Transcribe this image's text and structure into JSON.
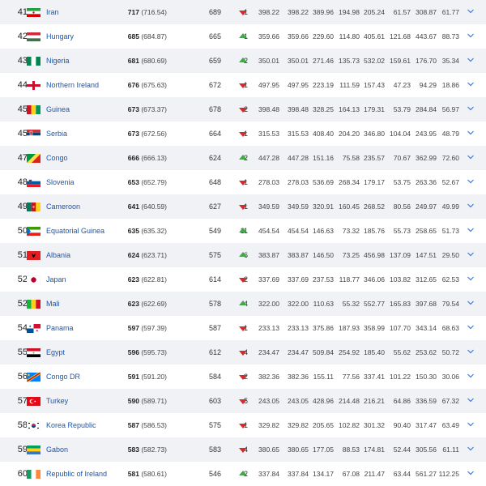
{
  "rows": [
    {
      "rank": "41",
      "team": "Iran",
      "flag": "iran",
      "pts": "717",
      "pts_prec": "(716.54)",
      "prev": "689",
      "move": "-1",
      "dir": "down",
      "cols": [
        "398.22",
        "398.22",
        "389.96",
        "194.98",
        "205.24",
        "61.57",
        "308.87",
        "61.77"
      ]
    },
    {
      "rank": "42",
      "team": "Hungary",
      "flag": "hungary",
      "pts": "685",
      "pts_prec": "(684.87)",
      "prev": "665",
      "move": "1",
      "dir": "up",
      "cols": [
        "359.66",
        "359.66",
        "229.60",
        "114.80",
        "405.61",
        "121.68",
        "443.67",
        "88.73"
      ]
    },
    {
      "rank": "43",
      "team": "Nigeria",
      "flag": "nigeria",
      "pts": "681",
      "pts_prec": "(680.69)",
      "prev": "659",
      "move": "2",
      "dir": "up",
      "cols": [
        "350.01",
        "350.01",
        "271.46",
        "135.73",
        "532.02",
        "159.61",
        "176.70",
        "35.34"
      ]
    },
    {
      "rank": "44",
      "team": "Northern Ireland",
      "flag": "nireland",
      "pts": "676",
      "pts_prec": "(675.63)",
      "prev": "672",
      "move": "-1",
      "dir": "down",
      "cols": [
        "497.95",
        "497.95",
        "223.19",
        "111.59",
        "157.43",
        "47.23",
        "94.29",
        "18.86"
      ]
    },
    {
      "rank": "45",
      "team": "Guinea",
      "flag": "guinea",
      "pts": "673",
      "pts_prec": "(673.37)",
      "prev": "678",
      "move": "-2",
      "dir": "down",
      "cols": [
        "398.48",
        "398.48",
        "328.25",
        "164.13",
        "179.31",
        "53.79",
        "284.84",
        "56.97"
      ]
    },
    {
      "rank": "45",
      "team": "Serbia",
      "flag": "serbia",
      "pts": "673",
      "pts_prec": "(672.56)",
      "prev": "664",
      "move": "-1",
      "dir": "down",
      "cols": [
        "315.53",
        "315.53",
        "408.40",
        "204.20",
        "346.80",
        "104.04",
        "243.95",
        "48.79"
      ]
    },
    {
      "rank": "47",
      "team": "Congo",
      "flag": "congo",
      "pts": "666",
      "pts_prec": "(666.13)",
      "prev": "624",
      "move": "2",
      "dir": "up",
      "cols": [
        "447.28",
        "447.28",
        "151.16",
        "75.58",
        "235.57",
        "70.67",
        "362.99",
        "72.60"
      ]
    },
    {
      "rank": "48",
      "team": "Slovenia",
      "flag": "slovenia",
      "pts": "653",
      "pts_prec": "(652.79)",
      "prev": "648",
      "move": "-1",
      "dir": "down",
      "cols": [
        "278.03",
        "278.03",
        "536.69",
        "268.34",
        "179.17",
        "53.75",
        "263.36",
        "52.67"
      ]
    },
    {
      "rank": "49",
      "team": "Cameroon",
      "flag": "cameroon",
      "pts": "641",
      "pts_prec": "(640.59)",
      "prev": "627",
      "move": "-1",
      "dir": "down",
      "cols": [
        "349.59",
        "349.59",
        "320.91",
        "160.45",
        "268.52",
        "80.56",
        "249.97",
        "49.99"
      ]
    },
    {
      "rank": "50",
      "team": "Equatorial Guinea",
      "flag": "eqguinea",
      "pts": "635",
      "pts_prec": "(635.32)",
      "prev": "549",
      "move": "11",
      "dir": "up",
      "cols": [
        "454.54",
        "454.54",
        "146.63",
        "73.32",
        "185.76",
        "55.73",
        "258.65",
        "51.73"
      ]
    },
    {
      "rank": "51",
      "team": "Albania",
      "flag": "albania",
      "pts": "624",
      "pts_prec": "(623.71)",
      "prev": "575",
      "move": "6",
      "dir": "up",
      "cols": [
        "383.87",
        "383.87",
        "146.50",
        "73.25",
        "456.98",
        "137.09",
        "147.51",
        "29.50"
      ]
    },
    {
      "rank": "52",
      "team": "Japan",
      "flag": "japan",
      "pts": "623",
      "pts_prec": "(622.81)",
      "prev": "614",
      "move": "-2",
      "dir": "down",
      "cols": [
        "337.69",
        "337.69",
        "237.53",
        "118.77",
        "346.06",
        "103.82",
        "312.65",
        "62.53"
      ]
    },
    {
      "rank": "52",
      "team": "Mali",
      "flag": "mali",
      "pts": "623",
      "pts_prec": "(622.69)",
      "prev": "578",
      "move": "4",
      "dir": "up",
      "cols": [
        "322.00",
        "322.00",
        "110.63",
        "55.32",
        "552.77",
        "165.83",
        "397.68",
        "79.54"
      ]
    },
    {
      "rank": "54",
      "team": "Panama",
      "flag": "panama",
      "pts": "597",
      "pts_prec": "(597.39)",
      "prev": "587",
      "move": "-1",
      "dir": "down",
      "cols": [
        "233.13",
        "233.13",
        "375.86",
        "187.93",
        "358.99",
        "107.70",
        "343.14",
        "68.63"
      ]
    },
    {
      "rank": "55",
      "team": "Egypt",
      "flag": "egypt",
      "pts": "596",
      "pts_prec": "(595.73)",
      "prev": "612",
      "move": "-4",
      "dir": "down",
      "cols": [
        "234.47",
        "234.47",
        "509.84",
        "254.92",
        "185.40",
        "55.62",
        "253.62",
        "50.72"
      ]
    },
    {
      "rank": "56",
      "team": "Congo DR",
      "flag": "congodr",
      "pts": "591",
      "pts_prec": "(591.20)",
      "prev": "584",
      "move": "-2",
      "dir": "down",
      "cols": [
        "382.36",
        "382.36",
        "155.11",
        "77.56",
        "337.41",
        "101.22",
        "150.30",
        "30.06"
      ]
    },
    {
      "rank": "57",
      "team": "Turkey",
      "flag": "turkey",
      "pts": "590",
      "pts_prec": "(589.71)",
      "prev": "603",
      "move": "-5",
      "dir": "down",
      "cols": [
        "243.05",
        "243.05",
        "428.96",
        "214.48",
        "216.21",
        "64.86",
        "336.59",
        "67.32"
      ]
    },
    {
      "rank": "58",
      "team": "Korea Republic",
      "flag": "korea",
      "pts": "587",
      "pts_prec": "(586.53)",
      "prev": "575",
      "move": "-1",
      "dir": "down",
      "cols": [
        "329.82",
        "329.82",
        "205.65",
        "102.82",
        "301.32",
        "90.40",
        "317.47",
        "63.49"
      ]
    },
    {
      "rank": "59",
      "team": "Gabon",
      "flag": "gabon",
      "pts": "583",
      "pts_prec": "(582.73)",
      "prev": "583",
      "move": "-4",
      "dir": "down",
      "cols": [
        "380.65",
        "380.65",
        "177.05",
        "88.53",
        "174.81",
        "52.44",
        "305.56",
        "61.11"
      ]
    },
    {
      "rank": "60",
      "team": "Republic of Ireland",
      "flag": "ireland",
      "pts": "581",
      "pts_prec": "(580.61)",
      "prev": "546",
      "move": "2",
      "dir": "up",
      "cols": [
        "337.84",
        "337.84",
        "134.17",
        "67.08",
        "211.47",
        "63.44",
        "561.27",
        "112.25"
      ]
    }
  ],
  "colors": {
    "link": "#1a56b0",
    "up": "#46a64b",
    "down": "#d22c2c",
    "stripe": "#f1f2f6",
    "chevron": "#3b7dd8"
  }
}
